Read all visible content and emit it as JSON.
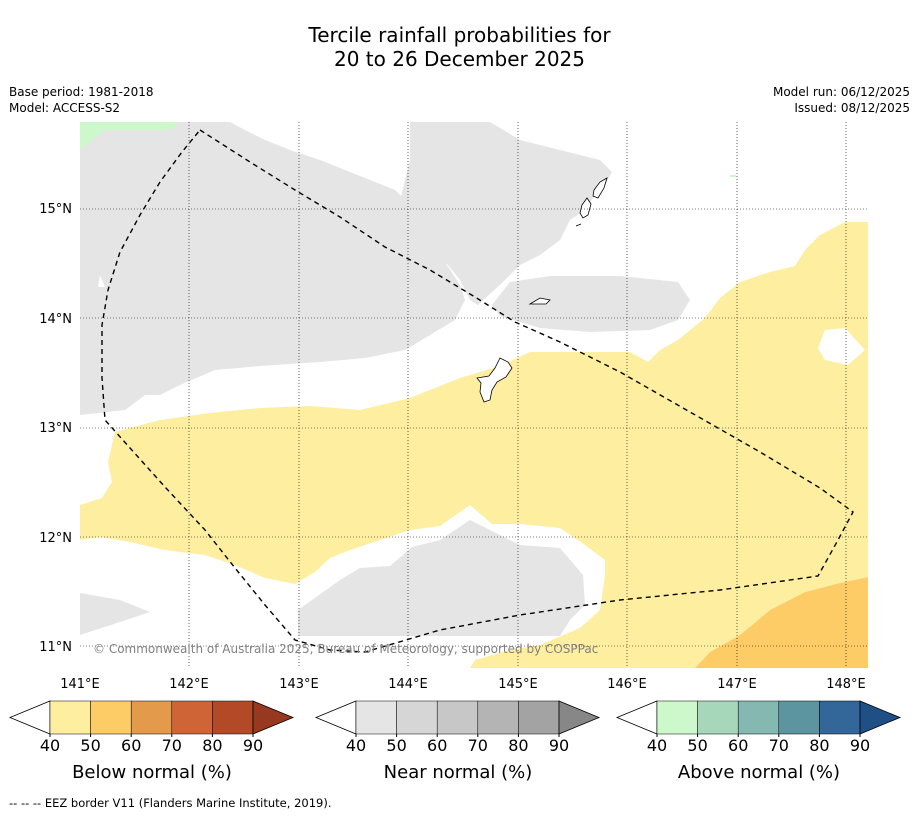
{
  "title": {
    "line1": "Tercile rainfall probabilities for",
    "line2": "20 to 26 December 2025"
  },
  "meta": {
    "base_period": "Base period: 1981-2018",
    "model": "Model: ACCESS-S2",
    "model_run": "Model run: 06/12/2025",
    "issued": "Issued: 08/12/2025"
  },
  "map": {
    "lat_labels": [
      "15°N",
      "14°N",
      "13°N",
      "12°N",
      "11°N"
    ],
    "lon_labels": [
      "141°E",
      "142°E",
      "143°E",
      "144°E",
      "145°E",
      "146°E",
      "147°E",
      "148°E"
    ],
    "copyright": "© Commonwealth of Australia 2025, Bureau of Meteorology, supported by COSPPac",
    "lat_range": [
      10.8,
      15.8
    ],
    "lon_range": [
      141.0,
      148.2
    ]
  },
  "colorbars": {
    "ticks": [
      "40",
      "50",
      "60",
      "70",
      "80",
      "90"
    ],
    "below": {
      "label": "Below normal (%)",
      "colors": [
        "#ffffff",
        "#feeea0",
        "#fdcc66",
        "#e39a4a",
        "#cf6536",
        "#b24a27",
        "#963920"
      ]
    },
    "near": {
      "label": "Near normal (%)",
      "colors": [
        "#ffffff",
        "#e5e5e5",
        "#d6d6d6",
        "#c7c7c7",
        "#b4b4b4",
        "#a3a3a3",
        "#878787"
      ]
    },
    "above": {
      "label": "Above normal (%)",
      "colors": [
        "#ffffff",
        "#ccf8cc",
        "#a6d7bb",
        "#84b8b0",
        "#5c95a0",
        "#336699",
        "#1f4f85"
      ]
    }
  },
  "footnote": "--  --  -- EEZ border V11 (Flanders Marine Institute, 2019)."
}
